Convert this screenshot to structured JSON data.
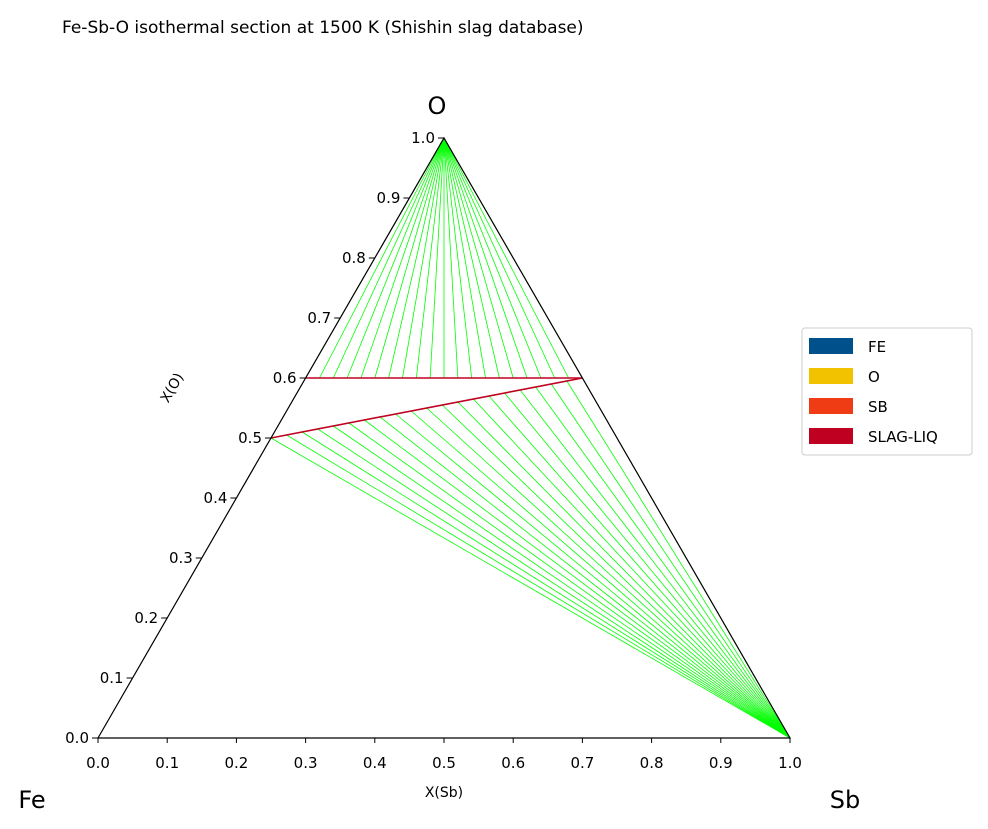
{
  "chart_data": {
    "type": "ternary",
    "title": "Fe-Sb-O isothermal section at 1500 K (Shishin slag database)",
    "vertices": {
      "left": "Fe",
      "right": "Sb",
      "top": "O"
    },
    "xlabel": "X(Sb)",
    "ylabel": "X(O)",
    "xlim": [
      0,
      1
    ],
    "ylim": [
      0,
      1
    ],
    "xticks": [
      {
        "value": 0,
        "label": "0.0"
      },
      0.1,
      0.2,
      0.3,
      0.4,
      0.5,
      0.6,
      0.7,
      0.8,
      0.9,
      {
        "value": 1,
        "label": "1.0"
      }
    ],
    "yticks": [
      {
        "value": 0,
        "label": "0.0"
      },
      0.1,
      0.2,
      0.3,
      0.4,
      0.5,
      0.6,
      0.7,
      0.8,
      0.9,
      {
        "value": 1,
        "label": "1.0"
      }
    ],
    "legend": [
      {
        "name": "FE",
        "color": "#00508c"
      },
      {
        "name": "O",
        "color": "#f2c200"
      },
      {
        "name": "SB",
        "color": "#f03c14"
      },
      {
        "name": "SLAG-LIQ",
        "color": "#c00020"
      }
    ],
    "legend_position": "right",
    "phase_boundaries": [
      {
        "x": [
          0,
          0.4
        ],
        "y": [
          0.6,
          0.6
        ],
        "color": "#c00020"
      },
      {
        "x": [
          0,
          0.4
        ],
        "y": [
          0.5,
          0.6
        ],
        "color": "#c00020"
      }
    ],
    "tie_lines": [
      {
        "color": "#00ff00",
        "from_x": 0,
        "from_y": 1,
        "to_x": [
          0,
          0.02,
          0.04,
          0.06,
          0.08,
          0.1,
          0.12,
          0.14,
          0.16,
          0.18,
          0.2,
          0.22,
          0.24,
          0.26,
          0.28,
          0.3,
          0.32,
          0.34,
          0.36,
          0.38,
          0.4
        ],
        "to_y": [
          0.6,
          0.6,
          0.6,
          0.6,
          0.6,
          0.6,
          0.6,
          0.6,
          0.6,
          0.6,
          0.6,
          0.6,
          0.6,
          0.6,
          0.6,
          0.6,
          0.6,
          0.6,
          0.6,
          0.6,
          0.6
        ]
      },
      {
        "color": "#00ff00",
        "from_x": 1,
        "from_y": 0,
        "to_x": [
          0,
          0.02,
          0.04,
          0.06,
          0.08,
          0.1,
          0.12,
          0.14,
          0.16,
          0.18,
          0.2,
          0.22,
          0.24,
          0.26,
          0.28,
          0.3,
          0.32,
          0.34,
          0.36,
          0.38,
          0.4
        ],
        "to_y": [
          0.5,
          0.505,
          0.51,
          0.515,
          0.52,
          0.525,
          0.53,
          0.535,
          0.54,
          0.545,
          0.55,
          0.555,
          0.56,
          0.565,
          0.57,
          0.575,
          0.58,
          0.585,
          0.59,
          0.595,
          0.6
        ]
      }
    ]
  }
}
